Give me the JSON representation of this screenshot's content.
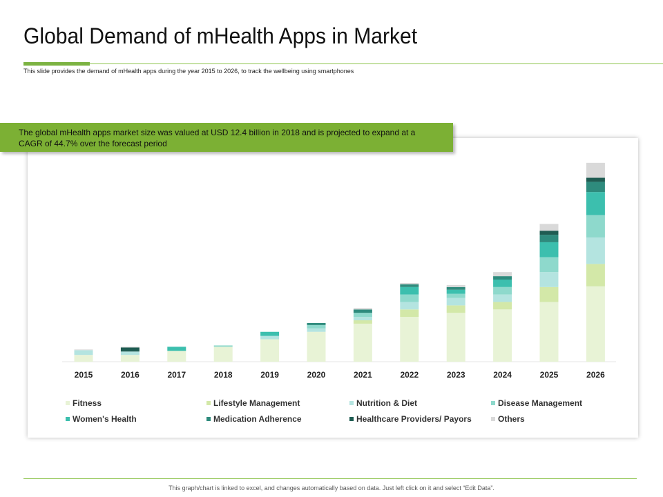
{
  "slide": {
    "title": "Global Demand of mHealth Apps in Market",
    "subtitle": "This slide provides the demand of mHealth apps during the year 2015 to 2026, to track the wellbeing using smartphones",
    "callout": "The global mHealth apps market size was valued at USD 12.4 billion in 2018 and is projected to expand at a CAGR of 44.7% over the forecast period",
    "footer": "This graph/chart is linked to excel, and changes automatically based on data. Just left click on it and select “Edit Data”.",
    "accent_color": "#7cb342"
  },
  "chart_data": {
    "type": "bar",
    "stacked": true,
    "title": "",
    "xlabel": "",
    "ylabel": "",
    "ylim": [
      0,
      300
    ],
    "grid": false,
    "legend_position": "bottom",
    "categories": [
      "2015",
      "2016",
      "2017",
      "2018",
      "2019",
      "2020",
      "2021",
      "2022",
      "2023",
      "2024",
      "2025",
      "2026"
    ],
    "series": [
      {
        "name": "Fitness",
        "color": "#e8f3d6",
        "values": [
          10,
          10,
          16,
          22,
          33,
          44,
          56,
          66,
          72,
          77,
          88,
          111
        ]
      },
      {
        "name": "Lifestyle Management",
        "color": "#d3e8a8",
        "values": [
          0,
          0,
          0,
          0,
          0,
          0,
          5,
          11,
          11,
          11,
          22,
          33
        ]
      },
      {
        "name": "Nutrition & Diet",
        "color": "#b4e4e0",
        "values": [
          7,
          5,
          0,
          0,
          5,
          5,
          5,
          11,
          11,
          11,
          22,
          39
        ]
      },
      {
        "name": "Disease Management",
        "color": "#8ed9cc",
        "values": [
          0,
          0,
          0,
          2,
          0,
          5,
          6,
          11,
          6,
          11,
          22,
          33
        ]
      },
      {
        "name": "Women's Health",
        "color": "#3cbfae",
        "values": [
          0,
          0,
          6,
          0,
          6,
          0,
          0,
          11,
          6,
          11,
          22,
          34
        ]
      },
      {
        "name": "Medication Adherence",
        "color": "#2e8b7d",
        "values": [
          0,
          0,
          0,
          0,
          0,
          3,
          5,
          4,
          4,
          5,
          11,
          15
        ]
      },
      {
        "name": "Healthcare Providers/ Payors",
        "color": "#1f5c52",
        "values": [
          0,
          6,
          0,
          0,
          0,
          0,
          0,
          0,
          0,
          0,
          6,
          6
        ]
      },
      {
        "name": "Others",
        "color": "#d9d9d9",
        "values": [
          1,
          1,
          0,
          0,
          0,
          0,
          2,
          2,
          3,
          6,
          10,
          22
        ]
      }
    ]
  }
}
